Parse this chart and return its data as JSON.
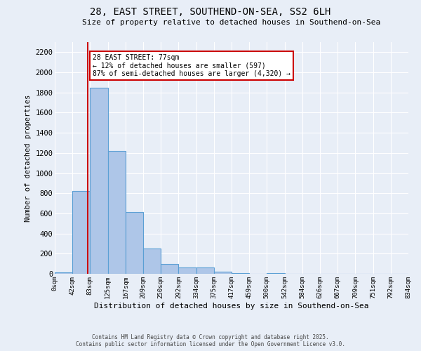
{
  "title": "28, EAST STREET, SOUTHEND-ON-SEA, SS2 6LH",
  "subtitle": "Size of property relative to detached houses in Southend-on-Sea",
  "xlabel": "Distribution of detached houses by size in Southend-on-Sea",
  "ylabel": "Number of detached properties",
  "bin_edges": [
    0,
    42,
    83,
    125,
    167,
    209,
    250,
    292,
    334,
    375,
    417,
    459,
    500,
    542,
    584,
    626,
    667,
    709,
    751,
    792,
    834
  ],
  "bar_heights": [
    15,
    820,
    1850,
    1220,
    610,
    250,
    100,
    60,
    60,
    20,
    5,
    0,
    5,
    0,
    0,
    0,
    0,
    0,
    0,
    0
  ],
  "bar_color": "#aec6e8",
  "bar_edge_color": "#5a9fd4",
  "background_color": "#e8eef7",
  "grid_color": "#ffffff",
  "property_size": 77,
  "red_line_color": "#cc0000",
  "annotation_line1": "28 EAST STREET: 77sqm",
  "annotation_line2": "← 12% of detached houses are smaller (597)",
  "annotation_line3": "87% of semi-detached houses are larger (4,320) →",
  "annotation_box_color": "#ffffff",
  "annotation_box_edge": "#cc0000",
  "ylim": [
    0,
    2300
  ],
  "yticks": [
    0,
    200,
    400,
    600,
    800,
    1000,
    1200,
    1400,
    1600,
    1800,
    2000,
    2200
  ],
  "footer1": "Contains HM Land Registry data © Crown copyright and database right 2025.",
  "footer2": "Contains public sector information licensed under the Open Government Licence v3.0."
}
